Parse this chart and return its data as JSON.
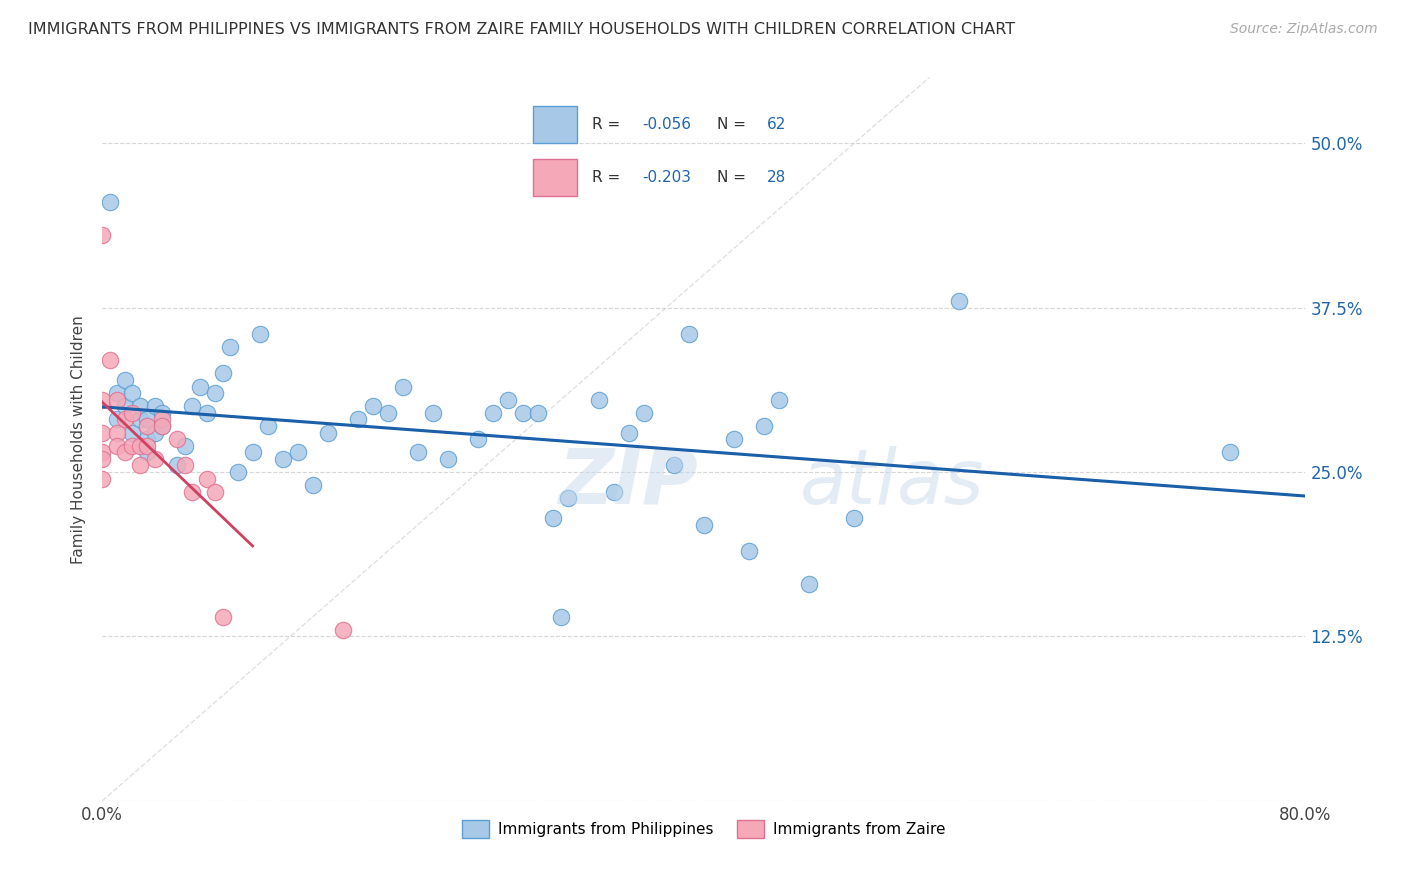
{
  "title": "IMMIGRANTS FROM PHILIPPINES VS IMMIGRANTS FROM ZAIRE FAMILY HOUSEHOLDS WITH CHILDREN CORRELATION CHART",
  "source": "Source: ZipAtlas.com",
  "ylabel": "Family Households with Children",
  "xlim": [
    0.0,
    0.8
  ],
  "ylim": [
    0.0,
    0.55
  ],
  "xticks": [
    0.0,
    0.1,
    0.2,
    0.3,
    0.4,
    0.5,
    0.6,
    0.7,
    0.8
  ],
  "xticklabels": [
    "0.0%",
    "",
    "",
    "",
    "",
    "",
    "",
    "",
    "80.0%"
  ],
  "yticks": [
    0.0,
    0.125,
    0.25,
    0.375,
    0.5
  ],
  "yticklabels": [
    "",
    "12.5%",
    "25.0%",
    "37.5%",
    "50.0%"
  ],
  "r_blue": -0.056,
  "n_blue": 62,
  "r_pink": -0.203,
  "n_pink": 28,
  "blue_color": "#a8c8e8",
  "pink_color": "#f4a8b8",
  "blue_edge_color": "#5a9fd4",
  "pink_edge_color": "#e07090",
  "blue_line_color": "#1a5fa8",
  "pink_line_color": "#d04060",
  "legend_text_color": "#2166ac",
  "blue_scatter_x": [
    0.005,
    0.01,
    0.01,
    0.015,
    0.015,
    0.02,
    0.02,
    0.025,
    0.025,
    0.03,
    0.03,
    0.03,
    0.035,
    0.035,
    0.04,
    0.04,
    0.05,
    0.055,
    0.06,
    0.065,
    0.07,
    0.075,
    0.08,
    0.085,
    0.09,
    0.1,
    0.105,
    0.11,
    0.12,
    0.13,
    0.14,
    0.15,
    0.17,
    0.18,
    0.19,
    0.2,
    0.21,
    0.22,
    0.23,
    0.25,
    0.26,
    0.27,
    0.28,
    0.29,
    0.3,
    0.305,
    0.31,
    0.33,
    0.34,
    0.35,
    0.36,
    0.38,
    0.39,
    0.4,
    0.42,
    0.43,
    0.44,
    0.45,
    0.47,
    0.5,
    0.57,
    0.75
  ],
  "blue_scatter_y": [
    0.455,
    0.29,
    0.31,
    0.3,
    0.32,
    0.28,
    0.31,
    0.29,
    0.3,
    0.265,
    0.275,
    0.29,
    0.28,
    0.3,
    0.285,
    0.295,
    0.255,
    0.27,
    0.3,
    0.315,
    0.295,
    0.31,
    0.325,
    0.345,
    0.25,
    0.265,
    0.355,
    0.285,
    0.26,
    0.265,
    0.24,
    0.28,
    0.29,
    0.3,
    0.295,
    0.315,
    0.265,
    0.295,
    0.26,
    0.275,
    0.295,
    0.305,
    0.295,
    0.295,
    0.215,
    0.14,
    0.23,
    0.305,
    0.235,
    0.28,
    0.295,
    0.255,
    0.355,
    0.21,
    0.275,
    0.19,
    0.285,
    0.305,
    0.165,
    0.215,
    0.38,
    0.265
  ],
  "pink_scatter_x": [
    0.0,
    0.0,
    0.0,
    0.0,
    0.0,
    0.0,
    0.005,
    0.01,
    0.01,
    0.01,
    0.015,
    0.015,
    0.02,
    0.02,
    0.025,
    0.025,
    0.03,
    0.03,
    0.035,
    0.04,
    0.04,
    0.05,
    0.055,
    0.06,
    0.07,
    0.075,
    0.08,
    0.16
  ],
  "pink_scatter_y": [
    0.43,
    0.305,
    0.28,
    0.265,
    0.26,
    0.245,
    0.335,
    0.305,
    0.28,
    0.27,
    0.29,
    0.265,
    0.295,
    0.27,
    0.27,
    0.255,
    0.285,
    0.27,
    0.26,
    0.29,
    0.285,
    0.275,
    0.255,
    0.235,
    0.245,
    0.235,
    0.14,
    0.13
  ]
}
